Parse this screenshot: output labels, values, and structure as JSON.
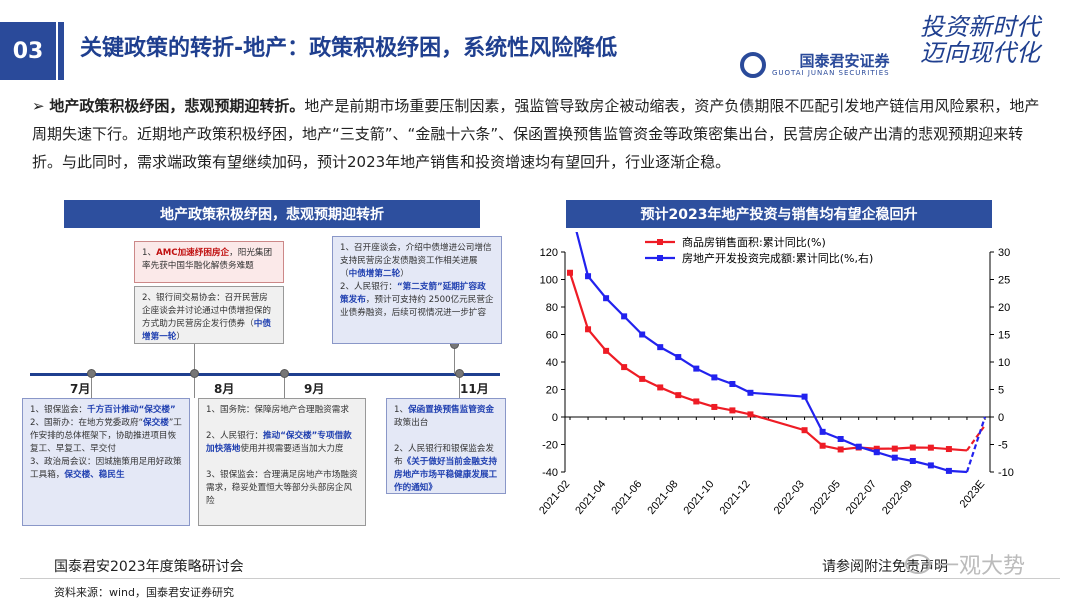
{
  "header": {
    "section_number": "03",
    "title": "关键政策的转折-地产：政策积极纾困，系统性风险降低",
    "slogan_line1": "投资新时代",
    "slogan_line2": "迈向现代化",
    "company_name": "国泰君安证券",
    "company_en": "GUOTAI JUNAN SECURITIES"
  },
  "summary": {
    "bullet": "➢",
    "lead": "地产政策积极纾困，悲观预期迎转折。",
    "body": "地产是前期市场重要压制因素，强监管导致房企被动缩表，资产负债期限不匹配引发地产链信用风险累积，地产周期失速下行。近期地产政策积极纾困，地产“三支箭”、“金融十六条”、保函置换预售监管资金等政策密集出台，民营房企破产出清的悲观预期迎来转折。与此同时，需求端政策有望继续加码，预计2023年地产销售和投资增速均有望回升，行业逐渐企稳。"
  },
  "timeline_panel": {
    "heading": "地产政策积极纾困，悲观预期迎转折",
    "months": [
      "7月",
      "8月",
      "9月",
      "11月"
    ],
    "top_boxes": [
      {
        "parts": [
          [
            "1、",
            ""
          ],
          [
            "AMC加速纾困房企",
            "hlr"
          ],
          [
            "，阳光集团率先获中国华融化解债务难题",
            ""
          ]
        ]
      },
      {
        "parts": [
          [
            "2、银行间交易协会：召开民营房企座谈会并讨论通过中债增担保的方式助力民营房企发行债券（",
            ""
          ],
          [
            "中债增第一轮",
            "hl"
          ],
          [
            "）",
            ""
          ]
        ]
      },
      {
        "parts": [
          [
            "1、召开座谈会，介绍中债增进公司增信支持民营房企发债融资工作相关进展（",
            ""
          ],
          [
            "中债增第二轮",
            "hl"
          ],
          [
            "）",
            ""
          ],
          [
            "\n2、人民银行：",
            ""
          ],
          [
            "“第二支箭”延期扩容政策发布",
            "hl"
          ],
          [
            "，预计可支持约 2500亿元民营企业债券融资，后续可视情况进一步扩容",
            ""
          ]
        ]
      }
    ],
    "bottom_boxes": [
      {
        "parts": [
          [
            "1、银保监会：",
            ""
          ],
          [
            "千方百计推动“保交楼”",
            "hl"
          ],
          [
            "\n2、国新办：在地方党委政府“",
            ""
          ],
          [
            "保交楼",
            "hl"
          ],
          [
            "”工作安排的总体框架下，协助推进项目恢复工、早复工、早交付\n3、政治局会议：因城施策用足用好政策工具箱，",
            ""
          ],
          [
            "保交楼、稳民生",
            "hl"
          ]
        ]
      },
      {
        "parts": [
          [
            "1、国务院：保障房地产合理融资需求\n\n2、人民银行：",
            ""
          ],
          [
            "推动“保交楼”专项借款加快落地",
            "hl"
          ],
          [
            "使用并视需要适当加大力度\n\n3、银保监会：合理满足房地产市场融资需求，稳妥处置恒大等部分头部房企风险",
            ""
          ]
        ]
      },
      {
        "parts": [
          [
            "1、",
            ""
          ],
          [
            "保函置换预售监管资金",
            "hl"
          ],
          [
            "政策出台\n\n2、人民银行和银保监会发布",
            ""
          ],
          [
            "《关于做好当前金融支持房地产市场平稳健康发展工作的通知》",
            "hl"
          ]
        ]
      }
    ]
  },
  "chart_panel": {
    "heading": "预计2023年地产投资与销售均有望企稳回升"
  },
  "chart_data": {
    "type": "line",
    "x": [
      "2021-02",
      "2021-03",
      "2021-04",
      "2021-05",
      "2021-06",
      "2021-07",
      "2021-08",
      "2021-09",
      "2021-10",
      "2021-11",
      "2021-12",
      "2022-01",
      "2022-02",
      "2022-03",
      "2022-04",
      "2022-05",
      "2022-06",
      "2022-07",
      "2022-08",
      "2022-09",
      "2022-10",
      "2022-11",
      "2022-12",
      "2023E"
    ],
    "x_tick_labels": [
      "2021-02",
      "2021-04",
      "2021-06",
      "2021-08",
      "2021-10",
      "2021-12",
      "2022-03",
      "2022-05",
      "2022-07",
      "2022-09",
      "2023E"
    ],
    "ylim_left": [
      -40,
      120
    ],
    "yticks_left": [
      -40,
      -20,
      0,
      20,
      40,
      60,
      80,
      100,
      120
    ],
    "ylim_right": [
      -10,
      30
    ],
    "yticks_right": [
      -10,
      -5,
      0,
      5,
      10,
      15,
      20,
      25,
      30
    ],
    "series": [
      {
        "name": "商品房销售面积:累计同比(%)",
        "axis": "left",
        "color": "#ee1c25",
        "values": [
          104.9,
          63.8,
          48.1,
          36.3,
          27.7,
          21.5,
          15.9,
          11.3,
          7.3,
          4.8,
          1.9,
          null,
          null,
          -9.6,
          -20.9,
          -23.6,
          -22.2,
          -23.1,
          -23.0,
          -22.2,
          -22.3,
          -23.3,
          -24.3,
          -6.0
        ],
        "estimated_from_index": 22
      }
    ],
    "series2": [
      {
        "name": "房地产开发投资完成额:累计同比(%,右)",
        "axis": "right",
        "color": "#2222ee",
        "values": [
          38.3,
          25.6,
          21.6,
          18.3,
          15.0,
          12.7,
          10.9,
          8.8,
          7.2,
          6.0,
          4.4,
          null,
          null,
          3.7,
          -2.7,
          -4.0,
          -5.4,
          -6.4,
          -7.4,
          -8.0,
          -8.8,
          -9.8,
          -10.0,
          0.0
        ],
        "estimated_from_index": 22
      }
    ]
  },
  "footer": {
    "left": "国泰君安2023年度策略研讨会",
    "source": "资料来源：wind，国泰君安证券研究",
    "right": "请参阅附注免责声明",
    "watermark": "一观大势"
  }
}
